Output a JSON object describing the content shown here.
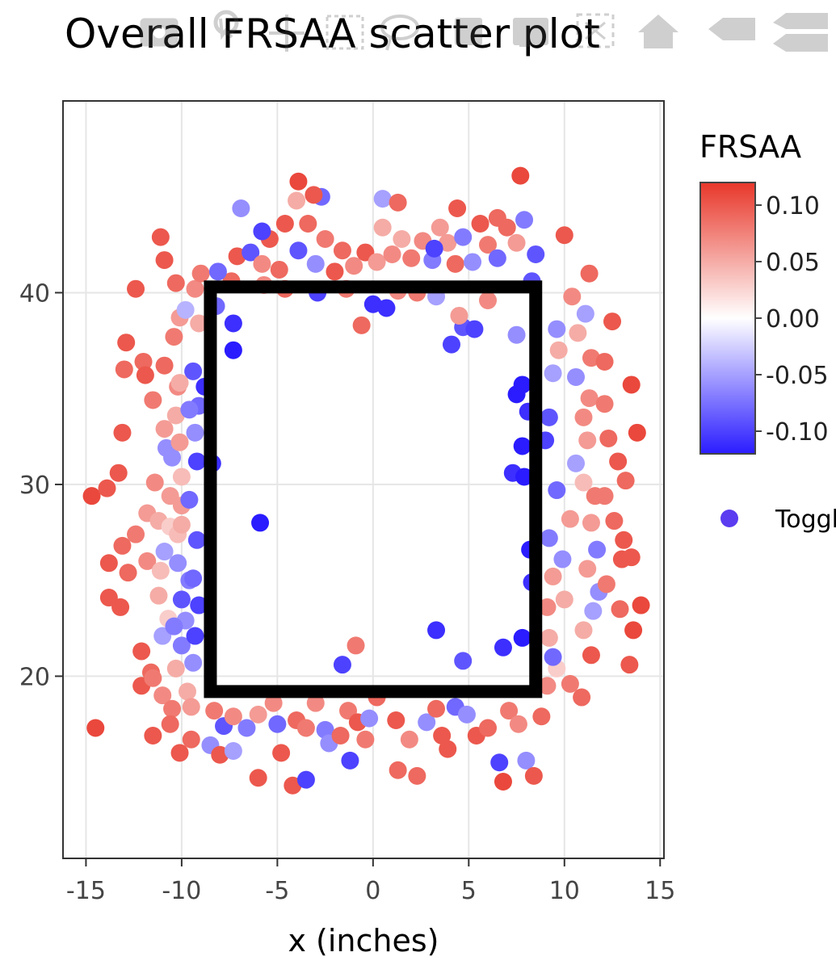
{
  "title": "Overall FRSAA scatter plot",
  "modebar": {
    "icons": [
      "camera-icon",
      "zoom-icon",
      "pan-icon",
      "box-select-icon",
      "lasso-select-icon",
      "zoom-in-icon",
      "zoom-out-icon",
      "autoscale-icon",
      "reset-axes-icon",
      "hover-closest-icon",
      "hover-compare-icon"
    ]
  },
  "colors": {
    "low": "#2a1cff",
    "mid": "#ffffff",
    "high": "#e8372a",
    "frame": "#333333",
    "grid": "#e6e6e6",
    "zone": "#000000"
  },
  "chart_data": {
    "type": "scatter",
    "title": "Overall FRSAA scatter plot",
    "xlabel": "x (inches)",
    "ylabel": "",
    "xlim": [
      -16.2,
      15.2
    ],
    "ylim": [
      10.5,
      50.0
    ],
    "xticks": [
      -15,
      -10,
      -5,
      0,
      5,
      10,
      15
    ],
    "xtick_labels": [
      "-15",
      "-10",
      "-5",
      "0",
      "5",
      "10",
      "15"
    ],
    "yticks": [
      20,
      30,
      40
    ],
    "ytick_labels": [
      "20",
      "30",
      "40"
    ],
    "grid": true,
    "strike_zone": {
      "x": [
        -8.5,
        8.5
      ],
      "y": [
        19.2,
        40.3
      ]
    },
    "colorbar": {
      "title": "FRSAA",
      "range": [
        -0.12,
        0.12
      ],
      "ticks": [
        0.1,
        0.05,
        0.0,
        -0.05,
        -0.1
      ],
      "tick_labels": [
        "0.10",
        "0.05",
        "0.00",
        "-0.05",
        "-0.10"
      ]
    },
    "legend": {
      "position": "right",
      "entries": [
        {
          "label": "Toggle"
        }
      ]
    },
    "points": [
      [
        -14.7,
        29.4,
        0.11
      ],
      [
        -13.9,
        29.8,
        0.1
      ],
      [
        -13.3,
        30.6,
        0.1
      ],
      [
        -13.8,
        25.9,
        0.1
      ],
      [
        -13.1,
        26.8,
        0.09
      ],
      [
        -12.8,
        25.4,
        0.09
      ],
      [
        -13.8,
        24.1,
        0.1
      ],
      [
        -13.2,
        23.6,
        0.1
      ],
      [
        -14.5,
        17.3,
        0.11
      ],
      [
        -12.4,
        40.2,
        0.1
      ],
      [
        -12.9,
        37.4,
        0.1
      ],
      [
        -13.0,
        36.0,
        0.09
      ],
      [
        -13.1,
        32.7,
        0.1
      ],
      [
        -12.0,
        36.4,
        0.09
      ],
      [
        -11.9,
        35.7,
        0.1
      ],
      [
        -11.5,
        34.4,
        0.08
      ],
      [
        -12.4,
        27.4,
        0.08
      ],
      [
        -11.8,
        28.5,
        0.06
      ],
      [
        -11.2,
        28.1,
        0.05
      ],
      [
        -11.8,
        26.0,
        0.07
      ],
      [
        -11.1,
        25.5,
        0.04
      ],
      [
        -10.9,
        26.5,
        -0.05
      ],
      [
        -10.6,
        27.8,
        0.03
      ],
      [
        -11.2,
        24.2,
        0.05
      ],
      [
        -10.7,
        23.0,
        0.03
      ],
      [
        -11.0,
        22.1,
        -0.05
      ],
      [
        -12.1,
        21.3,
        0.1
      ],
      [
        -11.6,
        20.2,
        0.09
      ],
      [
        -12.1,
        19.5,
        0.1
      ],
      [
        -11.5,
        19.9,
        0.08
      ],
      [
        -11.0,
        19.0,
        0.07
      ],
      [
        -10.5,
        18.3,
        0.08
      ],
      [
        -11.5,
        16.9,
        0.1
      ],
      [
        -10.1,
        16.0,
        0.1
      ],
      [
        -10.6,
        17.5,
        0.09
      ],
      [
        -10.3,
        20.4,
        0.05
      ],
      [
        -10.0,
        21.6,
        -0.07
      ],
      [
        -9.8,
        22.9,
        -0.06
      ],
      [
        -10.0,
        24.0,
        -0.09
      ],
      [
        -9.6,
        25.0,
        -0.07
      ],
      [
        -10.2,
        25.9,
        -0.06
      ],
      [
        -10.2,
        27.4,
        0.04
      ],
      [
        -10.0,
        28.9,
        0.06
      ],
      [
        -10.0,
        30.4,
        0.04
      ],
      [
        -10.5,
        31.4,
        -0.06
      ],
      [
        -10.9,
        32.9,
        0.06
      ],
      [
        -10.3,
        33.6,
        0.05
      ],
      [
        -10.2,
        35.1,
        0.07
      ],
      [
        -10.9,
        36.2,
        0.09
      ],
      [
        -10.4,
        37.7,
        0.08
      ],
      [
        -10.1,
        38.7,
        0.06
      ],
      [
        -10.3,
        40.5,
        0.09
      ],
      [
        -10.9,
        41.7,
        0.1
      ],
      [
        -11.1,
        42.9,
        0.1
      ],
      [
        -9.8,
        39.1,
        -0.04
      ],
      [
        -9.3,
        40.2,
        0.07
      ],
      [
        -9.0,
        41.0,
        0.08
      ],
      [
        -9.1,
        38.4,
        0.05
      ],
      [
        -9.4,
        35.9,
        -0.09
      ],
      [
        -9.1,
        34.1,
        -0.08
      ],
      [
        -9.3,
        32.7,
        -0.06
      ],
      [
        -9.2,
        31.2,
        -0.1
      ],
      [
        -9.6,
        29.2,
        -0.08
      ],
      [
        -9.2,
        27.1,
        -0.09
      ],
      [
        -9.4,
        25.1,
        -0.08
      ],
      [
        -9.1,
        23.7,
        -0.1
      ],
      [
        -9.3,
        22.1,
        -0.1
      ],
      [
        -9.4,
        20.7,
        -0.06
      ],
      [
        -9.7,
        19.2,
        0.05
      ],
      [
        -9.5,
        18.4,
        0.06
      ],
      [
        -9.5,
        16.7,
        0.09
      ],
      [
        -8.5,
        16.4,
        -0.06
      ],
      [
        -8.0,
        15.9,
        0.1
      ],
      [
        -8.3,
        18.2,
        0.08
      ],
      [
        -7.8,
        17.4,
        -0.09
      ],
      [
        -7.3,
        17.9,
        0.07
      ],
      [
        -7.3,
        16.1,
        -0.05
      ],
      [
        -6.6,
        17.3,
        -0.07
      ],
      [
        -6.0,
        14.7,
        0.1
      ],
      [
        -6.0,
        18.0,
        0.06
      ],
      [
        -5.2,
        18.6,
        0.07
      ],
      [
        -5.0,
        17.5,
        -0.08
      ],
      [
        -4.8,
        16.0,
        0.1
      ],
      [
        -4.2,
        14.3,
        0.1
      ],
      [
        -4.0,
        17.7,
        0.09
      ],
      [
        -3.5,
        14.6,
        -0.1
      ],
      [
        -3.5,
        17.3,
        0.08
      ],
      [
        -3.0,
        18.6,
        0.07
      ],
      [
        -2.5,
        17.2,
        -0.07
      ],
      [
        -2.3,
        16.5,
        -0.06
      ],
      [
        -1.7,
        16.9,
        0.09
      ],
      [
        -1.2,
        15.6,
        -0.1
      ],
      [
        -1.3,
        18.2,
        0.08
      ],
      [
        -0.8,
        17.6,
        0.1
      ],
      [
        -0.4,
        16.7,
        0.08
      ],
      [
        -0.2,
        17.8,
        -0.06
      ],
      [
        0.2,
        18.9,
        0.09
      ],
      [
        1.2,
        17.7,
        0.1
      ],
      [
        1.3,
        15.1,
        0.09
      ],
      [
        1.9,
        16.7,
        0.07
      ],
      [
        2.3,
        14.8,
        0.09
      ],
      [
        2.8,
        17.6,
        -0.06
      ],
      [
        3.3,
        18.3,
        0.09
      ],
      [
        3.6,
        16.9,
        0.1
      ],
      [
        3.9,
        16.2,
        0.1
      ],
      [
        4.3,
        18.4,
        -0.08
      ],
      [
        4.9,
        18.0,
        -0.06
      ],
      [
        5.4,
        16.9,
        0.1
      ],
      [
        6.0,
        17.3,
        0.09
      ],
      [
        6.6,
        15.5,
        -0.1
      ],
      [
        6.8,
        14.5,
        0.11
      ],
      [
        7.1,
        18.2,
        0.08
      ],
      [
        7.6,
        17.5,
        0.07
      ],
      [
        8.0,
        15.6,
        -0.06
      ],
      [
        8.4,
        14.8,
        0.1
      ],
      [
        8.8,
        17.9,
        0.09
      ],
      [
        9.1,
        19.5,
        0.07
      ],
      [
        9.6,
        20.4,
        0.03
      ],
      [
        10.3,
        19.6,
        0.08
      ],
      [
        10.9,
        18.9,
        0.09
      ],
      [
        11.4,
        21.1,
        0.1
      ],
      [
        11.0,
        22.4,
        0.05
      ],
      [
        11.5,
        23.4,
        -0.05
      ],
      [
        11.8,
        24.4,
        -0.06
      ],
      [
        11.2,
        25.6,
        0.06
      ],
      [
        11.7,
        26.6,
        -0.07
      ],
      [
        11.4,
        28.0,
        0.06
      ],
      [
        11.6,
        29.4,
        0.08
      ],
      [
        11.0,
        30.1,
        0.04
      ],
      [
        10.6,
        31.1,
        -0.05
      ],
      [
        11.2,
        32.3,
        0.06
      ],
      [
        11.0,
        33.5,
        0.07
      ],
      [
        11.3,
        34.5,
        0.07
      ],
      [
        10.6,
        35.6,
        -0.06
      ],
      [
        11.4,
        36.6,
        0.08
      ],
      [
        10.7,
        37.9,
        0.05
      ],
      [
        11.1,
        38.9,
        -0.05
      ],
      [
        10.4,
        39.8,
        0.07
      ],
      [
        11.3,
        41.0,
        0.09
      ],
      [
        10.0,
        43.0,
        0.1
      ],
      [
        12.5,
        38.5,
        0.1
      ],
      [
        12.1,
        36.4,
        0.09
      ],
      [
        12.1,
        34.2,
        0.08
      ],
      [
        12.3,
        32.4,
        0.09
      ],
      [
        12.8,
        31.2,
        0.1
      ],
      [
        12.1,
        29.4,
        0.08
      ],
      [
        12.6,
        28.1,
        0.09
      ],
      [
        13.0,
        26.1,
        0.1
      ],
      [
        13.1,
        27.1,
        0.1
      ],
      [
        12.2,
        24.8,
        0.08
      ],
      [
        12.9,
        23.5,
        0.09
      ],
      [
        13.4,
        20.6,
        0.1
      ],
      [
        13.6,
        22.4,
        0.11
      ],
      [
        14.0,
        23.7,
        0.11
      ],
      [
        13.8,
        32.7,
        0.11
      ],
      [
        13.5,
        35.2,
        0.11
      ],
      [
        13.5,
        26.2,
        0.1
      ],
      [
        13.2,
        30.2,
        0.09
      ],
      [
        9.6,
        38.1,
        -0.06
      ],
      [
        9.4,
        35.8,
        -0.05
      ],
      [
        9.2,
        33.5,
        -0.09
      ],
      [
        9.0,
        32.3,
        -0.1
      ],
      [
        9.6,
        29.7,
        -0.08
      ],
      [
        9.2,
        27.2,
        -0.07
      ],
      [
        9.4,
        25.2,
        0.06
      ],
      [
        9.1,
        23.6,
        0.07
      ],
      [
        9.2,
        22.0,
        0.05
      ],
      [
        9.4,
        21.0,
        -0.08
      ],
      [
        9.9,
        26.1,
        -0.06
      ],
      [
        10.3,
        28.2,
        0.06
      ],
      [
        10.0,
        24.0,
        0.05
      ],
      [
        9.7,
        37.0,
        0.05
      ],
      [
        8.1,
        33.8,
        -0.11
      ],
      [
        7.5,
        34.7,
        -0.12
      ],
      [
        7.8,
        35.2,
        -0.12
      ],
      [
        7.8,
        32.0,
        -0.12
      ],
      [
        7.3,
        30.6,
        -0.11
      ],
      [
        7.9,
        30.4,
        -0.12
      ],
      [
        8.2,
        26.6,
        -0.12
      ],
      [
        8.3,
        24.9,
        -0.11
      ],
      [
        7.8,
        22.0,
        -0.12
      ],
      [
        6.8,
        21.5,
        -0.11
      ],
      [
        4.7,
        20.8,
        -0.09
      ],
      [
        3.3,
        22.4,
        -0.11
      ],
      [
        -1.6,
        20.6,
        -0.1
      ],
      [
        -0.9,
        21.6,
        0.08
      ],
      [
        -5.9,
        28.0,
        -0.12
      ],
      [
        -7.3,
        37.0,
        -0.12
      ],
      [
        -7.3,
        38.4,
        -0.11
      ],
      [
        -8.8,
        35.1,
        -0.11
      ],
      [
        -8.4,
        31.1,
        -0.11
      ],
      [
        -8.2,
        39.3,
        -0.08
      ],
      [
        0.0,
        39.4,
        -0.11
      ],
      [
        0.7,
        39.2,
        -0.11
      ],
      [
        -0.6,
        38.3,
        0.09
      ],
      [
        4.7,
        38.2,
        -0.09
      ],
      [
        5.3,
        38.1,
        -0.1
      ],
      [
        4.1,
        37.3,
        -0.1
      ],
      [
        7.5,
        37.8,
        -0.06
      ],
      [
        6.0,
        39.6,
        0.07
      ],
      [
        4.5,
        38.8,
        0.06
      ],
      [
        3.3,
        39.8,
        -0.05
      ],
      [
        2.3,
        40.0,
        0.08
      ],
      [
        1.3,
        40.1,
        0.07
      ],
      [
        -1.4,
        40.2,
        0.08
      ],
      [
        -2.9,
        40.0,
        -0.1
      ],
      [
        -4.6,
        40.2,
        0.09
      ],
      [
        -5.7,
        40.4,
        0.07
      ],
      [
        -7.4,
        40.6,
        0.09
      ],
      [
        -8.1,
        41.1,
        -0.08
      ],
      [
        -7.1,
        41.9,
        0.1
      ],
      [
        -6.4,
        42.1,
        -0.09
      ],
      [
        -5.8,
        41.5,
        0.07
      ],
      [
        -5.4,
        42.8,
        0.1
      ],
      [
        -4.9,
        41.2,
        0.09
      ],
      [
        -4.6,
        43.6,
        0.1
      ],
      [
        -3.9,
        42.2,
        -0.09
      ],
      [
        -3.4,
        43.6,
        0.09
      ],
      [
        -3.0,
        41.5,
        -0.06
      ],
      [
        -2.5,
        42.8,
        0.08
      ],
      [
        -2.0,
        41.1,
        0.1
      ],
      [
        -1.6,
        42.2,
        0.09
      ],
      [
        -1.0,
        41.4,
        0.07
      ],
      [
        -0.4,
        42.1,
        0.1
      ],
      [
        0.2,
        41.6,
        0.06
      ],
      [
        0.5,
        43.4,
        0.05
      ],
      [
        1.0,
        42.0,
        0.07
      ],
      [
        1.5,
        42.8,
        0.05
      ],
      [
        2.0,
        41.8,
        0.08
      ],
      [
        2.6,
        42.7,
        0.07
      ],
      [
        3.1,
        41.7,
        -0.07
      ],
      [
        3.5,
        43.4,
        0.06
      ],
      [
        3.9,
        42.6,
        0.06
      ],
      [
        4.3,
        41.5,
        0.09
      ],
      [
        4.7,
        42.9,
        -0.07
      ],
      [
        5.2,
        41.6,
        -0.06
      ],
      [
        5.6,
        43.6,
        0.1
      ],
      [
        6.0,
        42.5,
        0.08
      ],
      [
        6.5,
        41.8,
        -0.08
      ],
      [
        7.0,
        43.4,
        0.09
      ],
      [
        7.5,
        42.6,
        0.06
      ],
      [
        7.9,
        43.8,
        -0.07
      ],
      [
        8.5,
        42.0,
        -0.09
      ],
      [
        7.7,
        46.1,
        0.11
      ],
      [
        8.3,
        40.6,
        -0.09
      ],
      [
        -6.9,
        44.4,
        -0.06
      ],
      [
        -5.8,
        43.2,
        -0.1
      ],
      [
        -3.9,
        45.8,
        0.11
      ],
      [
        -4.0,
        44.8,
        0.05
      ],
      [
        -2.7,
        45.0,
        -0.08
      ],
      [
        -3.1,
        45.1,
        0.1
      ],
      [
        0.5,
        44.9,
        -0.05
      ],
      [
        1.3,
        44.7,
        0.09
      ],
      [
        4.4,
        44.4,
        0.1
      ],
      [
        6.5,
        43.9,
        0.09
      ],
      [
        3.2,
        42.3,
        -0.1
      ],
      [
        -10.1,
        35.3,
        0.05
      ],
      [
        -9.6,
        33.9,
        -0.07
      ],
      [
        -10.6,
        29.4,
        0.06
      ],
      [
        -10.0,
        27.9,
        0.05
      ],
      [
        -10.8,
        31.9,
        -0.06
      ],
      [
        -10.1,
        32.2,
        0.06
      ],
      [
        -11.4,
        30.1,
        0.07
      ],
      [
        -10.4,
        22.6,
        -0.07
      ]
    ]
  }
}
